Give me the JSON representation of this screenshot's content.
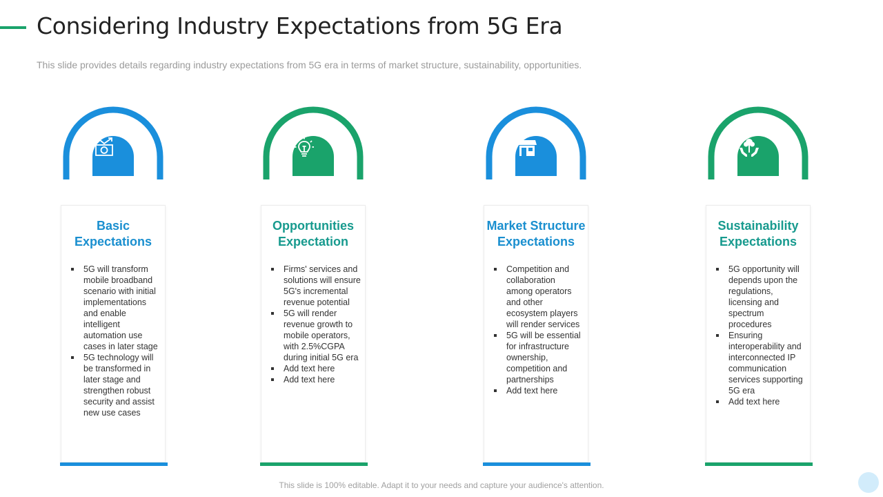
{
  "slide": {
    "title": "Considering Industry Expectations from 5G Era",
    "subtitle": "This slide provides details regarding industry expectations from 5G era in terms of market structure, sustainability, opportunities.",
    "footer": "This slide is 100% editable. Adapt it to your needs and capture your audience's attention."
  },
  "colors": {
    "blue": "#1a8fdc",
    "green": "#1aa36b",
    "title_blue": "#1a8fcf",
    "title_teal": "#179a8e"
  },
  "columns": [
    {
      "icon": "money-growth-icon",
      "title_line1": "Basic",
      "title_line2": "Expectations",
      "bullets": [
        "5G will transform mobile broadband scenario with initial implementations and enable intelligent automation use cases in later stage",
        "5G technology will be transformed in later stage and strengthen robust security and assist new use cases"
      ]
    },
    {
      "icon": "lightbulb-icon",
      "title_line1": "Opportunities",
      "title_line2": "Expectation",
      "bullets": [
        "Firms' services and solutions will ensure 5G's incremental revenue potential",
        "5G will render revenue growth to mobile operators, with 2.5%CGPA during initial 5G era",
        "Add text here",
        "Add text here"
      ]
    },
    {
      "icon": "storefront-icon",
      "title_line1": "Market Structure",
      "title_line2": "Expectations",
      "bullets": [
        "Competition and collaboration among operators and other ecosystem players will render services",
        "5G will be essential for infrastructure ownership, competition and partnerships",
        "Add text here"
      ]
    },
    {
      "icon": "plant-in-hands-icon",
      "title_line1": "Sustainability",
      "title_line2": "Expectations",
      "bullets": [
        "5G opportunity will depends upon the regulations, licensing and spectrum procedures",
        "Ensuring interoperability and interconnected IP communication services supporting 5G era",
        "Add text here"
      ]
    }
  ]
}
